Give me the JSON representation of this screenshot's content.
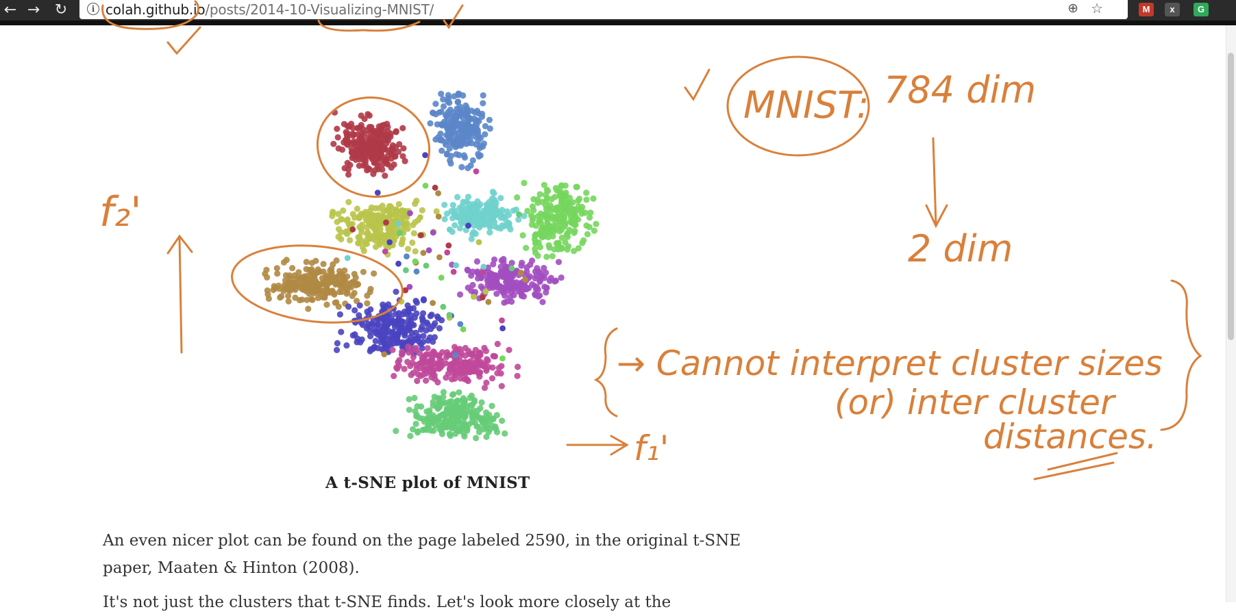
{
  "browser": {
    "back_icon": "←",
    "forward_icon": "→",
    "reload_icon": "↻",
    "url_host": "colah.github.io",
    "url_path": "/posts/2014-10-Visualizing-MNIST/",
    "zoom_icon": "⊕",
    "star_icon": "☆",
    "extensions": [
      {
        "name": "gmail-icon",
        "color": "#c0392b",
        "glyph": "M"
      },
      {
        "name": "close-ext-icon",
        "color": "#555555",
        "glyph": "x"
      },
      {
        "name": "grammarly-icon",
        "color": "#2eaa5a",
        "glyph": "G"
      }
    ]
  },
  "figure": {
    "caption": "A t-SNE plot of MNIST",
    "cluster_colors": [
      "#b03a48",
      "#5b86c9",
      "#b9c44a",
      "#6fd1cc",
      "#76d65d",
      "#b08a44",
      "#a24ec0",
      "#4a44c0",
      "#c0489a",
      "#66cc77"
    ]
  },
  "article": {
    "line1": "An even nicer plot can be found on the page labeled 2590, in the original t-SNE",
    "line2_prefix": "paper, ",
    "line2_link": "Maaten & Hinton (2008)",
    "line2_suffix": ".",
    "line3": "It's not just the clusters that t-SNE finds. Let's look more closely at the"
  },
  "annotations": {
    "color": "#d9803a",
    "mnist": "MNIST:",
    "dim784": "784 dim",
    "dim2": "2 dim",
    "f2": "f₂'",
    "f1": "f₁'",
    "note1": "→ Cannot interpret cluster sizes",
    "note2": "(or) inter cluster",
    "note3": "distances."
  }
}
